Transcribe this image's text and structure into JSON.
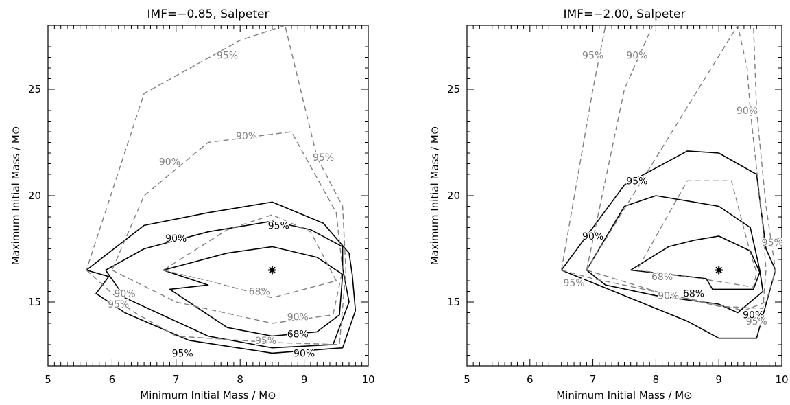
{
  "chart_data": [
    {
      "type": "contour",
      "title": "IMF=−0.85, Salpeter",
      "xlabel": "Minimum Initial Mass / M⊙",
      "ylabel": "Maximum Initial Mass / M⊙",
      "xlim": [
        5,
        10
      ],
      "ylim": [
        12,
        28
      ],
      "xticks": [
        "5",
        "6",
        "7",
        "8",
        "9",
        "10"
      ],
      "yticks": [
        "15",
        "20",
        "25"
      ],
      "best_fit": {
        "x": 8.5,
        "y": 16.5,
        "marker": "asterisk"
      },
      "colors": {
        "solid": "#000000",
        "dashed": "#808080"
      },
      "series": [
        {
          "label": "68%",
          "style": "solid",
          "x": [
            6.8,
            7.5,
            6.9,
            7.3,
            7.8,
            8.5,
            9.2,
            9.55,
            9.6,
            9.2,
            8.5,
            7.8,
            6.8
          ],
          "y": [
            16.5,
            15.8,
            15.6,
            14.8,
            13.8,
            13.4,
            13.6,
            14.4,
            16.3,
            17.1,
            17.6,
            17.3,
            16.5
          ]
        },
        {
          "label": "90%",
          "style": "solid",
          "x": [
            5.9,
            6.2,
            7.5,
            8.5,
            9.45,
            9.7,
            9.6,
            9.6,
            9.1,
            8.5,
            7.5,
            6.5,
            5.9
          ],
          "y": [
            16.5,
            15.2,
            13.4,
            12.85,
            13.0,
            15.0,
            16.6,
            17.6,
            18.4,
            18.8,
            18.3,
            17.5,
            16.5
          ]
        },
        {
          "label": "95%",
          "style": "solid",
          "x": [
            5.6,
            5.95,
            5.75,
            6.2,
            7.2,
            8.5,
            9.6,
            9.8,
            9.75,
            9.7,
            9.3,
            8.5,
            7.5,
            6.5,
            5.6
          ],
          "y": [
            16.5,
            16.2,
            15.4,
            14.5,
            13.2,
            12.6,
            12.85,
            14.6,
            16.3,
            17.3,
            18.7,
            19.7,
            19.2,
            18.6,
            16.5
          ]
        },
        {
          "label": "68%",
          "style": "dashed",
          "x": [
            6.8,
            7.5,
            8.5,
            9.5,
            9.1,
            8.5,
            7.8,
            6.8
          ],
          "y": [
            16.5,
            16.0,
            15.2,
            16.0,
            18.3,
            19.1,
            18.4,
            16.5
          ]
        },
        {
          "label": "90%",
          "style": "dashed",
          "x": [
            6.0,
            7.0,
            8.5,
            9.45,
            9.6,
            9.5,
            8.8,
            7.5,
            6.5,
            6.0
          ],
          "y": [
            16.5,
            15.0,
            14.0,
            14.4,
            16.5,
            19.2,
            23.0,
            22.5,
            20.0,
            16.5
          ]
        },
        {
          "label": "95%",
          "style": "dashed",
          "x": [
            5.6,
            6.3,
            7.0,
            8.5,
            9.55,
            9.65,
            9.6,
            9.2,
            8.7,
            8.0,
            6.5,
            5.6
          ],
          "y": [
            16.5,
            14.6,
            13.4,
            13.1,
            13.0,
            16.5,
            19.5,
            21.8,
            28.0,
            27.3,
            24.8,
            16.5
          ]
        }
      ],
      "contour_labels": [
        {
          "text": "68%",
          "x": 8.3,
          "y": 15.5,
          "color": "#808080"
        },
        {
          "text": "90%",
          "x": 6.9,
          "y": 21.6,
          "color": "#808080"
        },
        {
          "text": "95%",
          "x": 6.1,
          "y": 14.9,
          "color": "#808080"
        },
        {
          "text": "90%",
          "x": 8.1,
          "y": 22.8,
          "color": "#808080"
        },
        {
          "text": "95%",
          "x": 7.8,
          "y": 26.6,
          "color": "#808080"
        },
        {
          "text": "95%",
          "x": 9.3,
          "y": 21.8,
          "color": "#808080"
        },
        {
          "text": "90%",
          "x": 8.9,
          "y": 14.3,
          "color": "#808080"
        },
        {
          "text": "95%",
          "x": 8.4,
          "y": 13.2,
          "color": "#808080"
        },
        {
          "text": "90%",
          "x": 6.2,
          "y": 15.4,
          "color": "#808080"
        },
        {
          "text": "68%",
          "x": 8.9,
          "y": 13.5,
          "color": "#000000"
        },
        {
          "text": "90%",
          "x": 7.0,
          "y": 18.0,
          "color": "#000000"
        },
        {
          "text": "95%",
          "x": 8.6,
          "y": 18.6,
          "color": "#000000"
        },
        {
          "text": "90%",
          "x": 9.0,
          "y": 12.6,
          "color": "#000000"
        },
        {
          "text": "95%",
          "x": 7.1,
          "y": 12.6,
          "color": "#000000"
        }
      ]
    },
    {
      "type": "contour",
      "title": "IMF=−2.00, Salpeter",
      "xlabel": "Minimum Initial Mass / M⊙",
      "ylabel": "Maximum Initial Mass / M⊙",
      "xlim": [
        5,
        10
      ],
      "ylim": [
        12,
        28
      ],
      "xticks": [
        "5",
        "6",
        "7",
        "8",
        "9",
        "10"
      ],
      "yticks": [
        "15",
        "20",
        "25"
      ],
      "best_fit": {
        "x": 9.0,
        "y": 16.5,
        "marker": "asterisk"
      },
      "colors": {
        "solid": "#000000",
        "dashed": "#808080"
      },
      "series": [
        {
          "label": "68%",
          "style": "solid",
          "x": [
            7.6,
            8.8,
            8.9,
            9.55,
            9.65,
            9.5,
            9.0,
            8.6,
            8.2,
            7.6
          ],
          "y": [
            16.5,
            16.1,
            15.6,
            15.6,
            16.4,
            17.4,
            18.1,
            17.9,
            17.6,
            16.5
          ]
        },
        {
          "label": "90%",
          "style": "solid",
          "x": [
            6.9,
            7.2,
            8.0,
            9.0,
            9.3,
            9.7,
            9.65,
            9.5,
            9.0,
            8.0,
            7.5,
            6.9
          ],
          "y": [
            16.5,
            15.8,
            15.3,
            14.9,
            14.5,
            15.5,
            16.5,
            18.5,
            19.5,
            20.0,
            19.5,
            16.5
          ]
        },
        {
          "label": "95%",
          "style": "solid",
          "x": [
            6.5,
            7.0,
            7.5,
            8.5,
            9.0,
            9.6,
            9.9,
            9.75,
            9.6,
            9.0,
            8.5,
            7.5,
            6.5
          ],
          "y": [
            16.5,
            15.9,
            15.3,
            14.1,
            13.3,
            13.3,
            16.5,
            17.5,
            21.0,
            22.0,
            22.1,
            20.5,
            16.5
          ]
        },
        {
          "label": "68%",
          "style": "dashed",
          "x": [
            7.7,
            8.5,
            9.55,
            9.6,
            9.5,
            9.2,
            8.5,
            7.7
          ],
          "y": [
            16.5,
            16.2,
            15.7,
            16.4,
            17.3,
            20.7,
            20.7,
            16.5
          ]
        },
        {
          "label": "90%",
          "style": "dashed",
          "x": [
            6.9,
            8.0,
            9.0,
            9.7,
            9.75,
            9.7,
            9.5,
            9.45,
            9.3,
            6.9
          ],
          "y": [
            16.5,
            15.5,
            14.8,
            14.7,
            16.5,
            18.5,
            24.0,
            26.0,
            28.0,
            16.5
          ]
        },
        {
          "label": "95%",
          "style": "dashed",
          "x": [
            6.5,
            7.0,
            8.3,
            9.4,
            9.75,
            9.9,
            9.75,
            9.6,
            9.55
          ],
          "y": [
            16.5,
            16.1,
            15.3,
            14.6,
            15.0,
            16.5,
            19.5,
            24.0,
            28.0
          ]
        },
        {
          "label": "",
          "style": "dashed",
          "x": [
            6.5,
            7.0,
            7.2
          ],
          "y": [
            16.5,
            25.0,
            28.0
          ]
        },
        {
          "label": "",
          "style": "dashed",
          "x": [
            6.9,
            7.5,
            7.95
          ],
          "y": [
            16.5,
            25.0,
            28.0
          ]
        }
      ],
      "contour_labels": [
        {
          "text": "95%",
          "x": 7.0,
          "y": 26.6,
          "color": "#808080"
        },
        {
          "text": "90%",
          "x": 7.7,
          "y": 26.6,
          "color": "#808080"
        },
        {
          "text": "90%",
          "x": 9.45,
          "y": 24.0,
          "color": "#808080"
        },
        {
          "text": "95%",
          "x": 9.85,
          "y": 17.8,
          "color": "#808080"
        },
        {
          "text": "68%",
          "x": 8.1,
          "y": 16.2,
          "color": "#808080"
        },
        {
          "text": "90%",
          "x": 8.2,
          "y": 15.3,
          "color": "#808080"
        },
        {
          "text": "95%",
          "x": 6.7,
          "y": 15.9,
          "color": "#808080"
        },
        {
          "text": "95%",
          "x": 9.6,
          "y": 14.1,
          "color": "#808080"
        },
        {
          "text": "68%",
          "x": 8.6,
          "y": 15.4,
          "color": "#000000"
        },
        {
          "text": "90%",
          "x": 7.0,
          "y": 18.1,
          "color": "#000000"
        },
        {
          "text": "95%",
          "x": 7.7,
          "y": 20.7,
          "color": "#000000"
        },
        {
          "text": "90%",
          "x": 9.55,
          "y": 14.4,
          "color": "#000000"
        }
      ]
    }
  ]
}
